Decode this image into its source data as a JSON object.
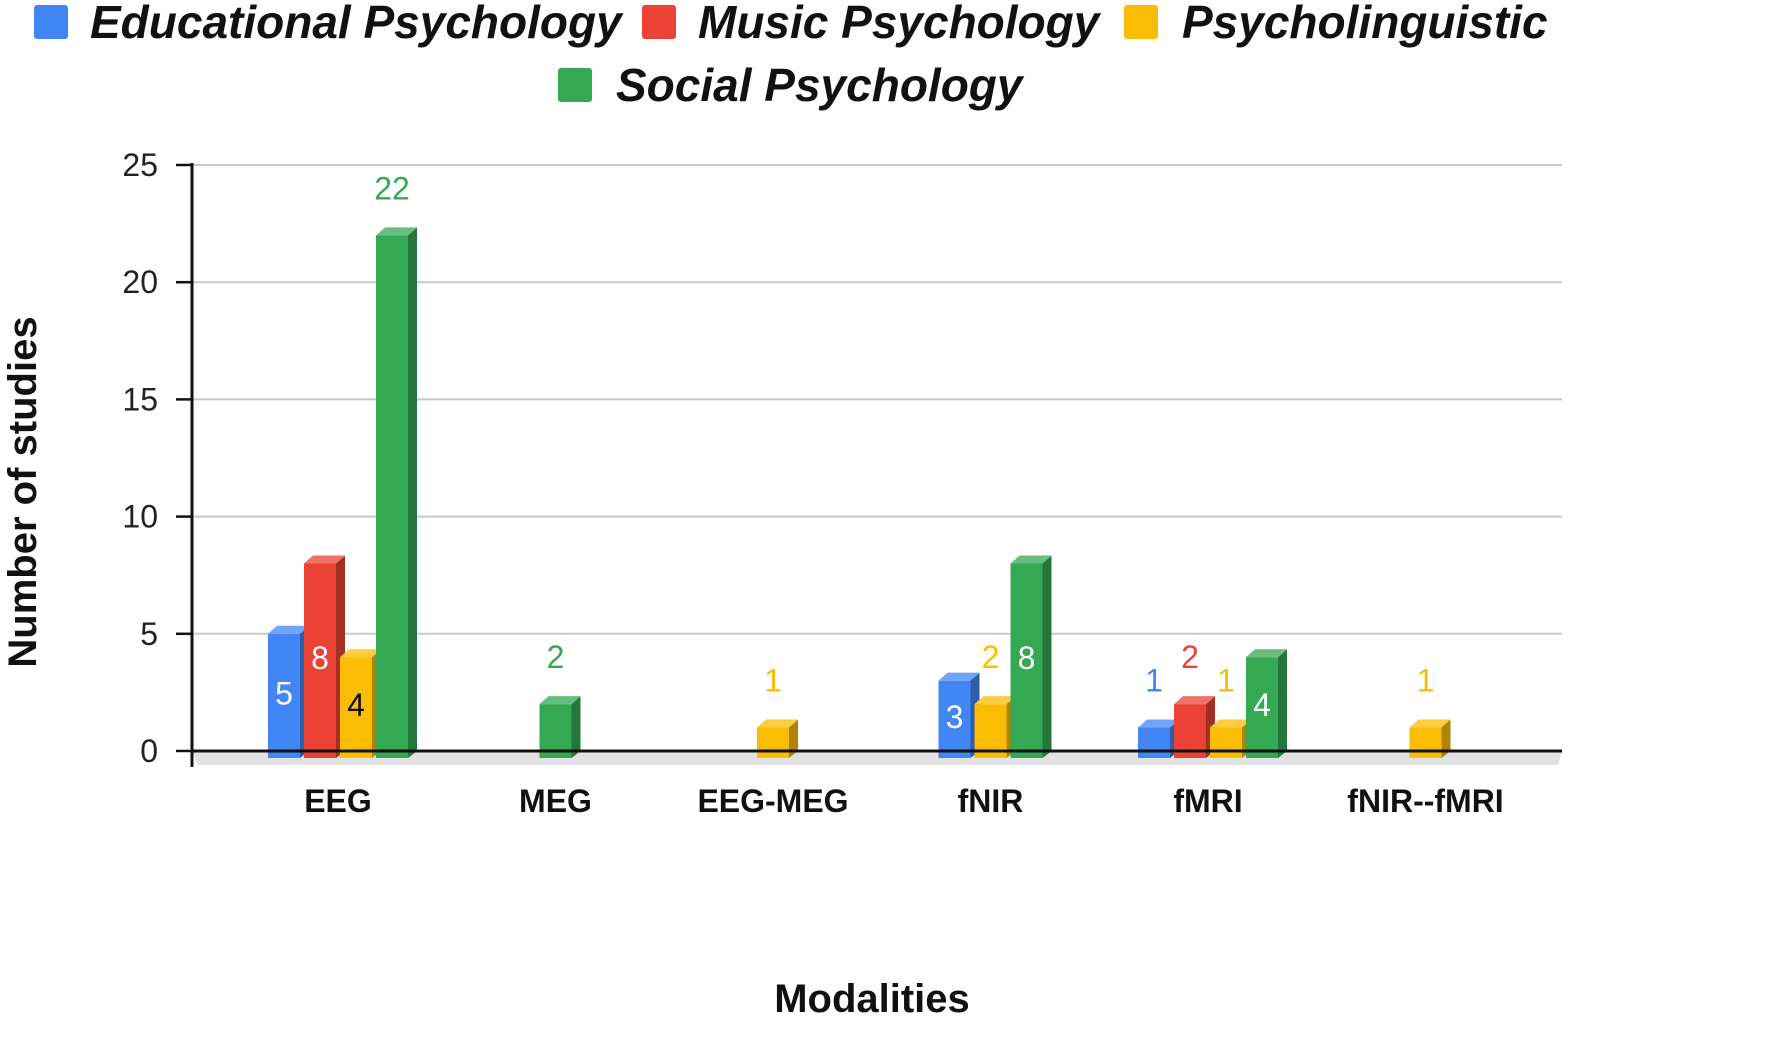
{
  "chart_data": {
    "type": "bar",
    "title": "",
    "xlabel": "Modalities",
    "ylabel": "Number of studies",
    "categories": [
      "EEG",
      "MEG",
      "EEG-MEG",
      "fNIR",
      "fMRI",
      "fNIR--fMRI"
    ],
    "ylim": [
      0,
      25
    ],
    "yticks": [
      0,
      5,
      10,
      15,
      20,
      25
    ],
    "grid": true,
    "legend_position": "top-center",
    "series": [
      {
        "name": "Educational Psychology",
        "color": "#4285F4",
        "values": [
          5,
          null,
          null,
          3,
          1,
          null
        ]
      },
      {
        "name": "Music Psychology",
        "color": "#EA4335",
        "values": [
          8,
          null,
          null,
          null,
          2,
          null
        ]
      },
      {
        "name": "Psycholinguistic",
        "color": "#FBBC04",
        "values": [
          4,
          null,
          1,
          2,
          1,
          1
        ]
      },
      {
        "name": "Social Psychology",
        "color": "#34A853",
        "values": [
          22,
          2,
          null,
          8,
          4,
          null
        ]
      }
    ]
  }
}
